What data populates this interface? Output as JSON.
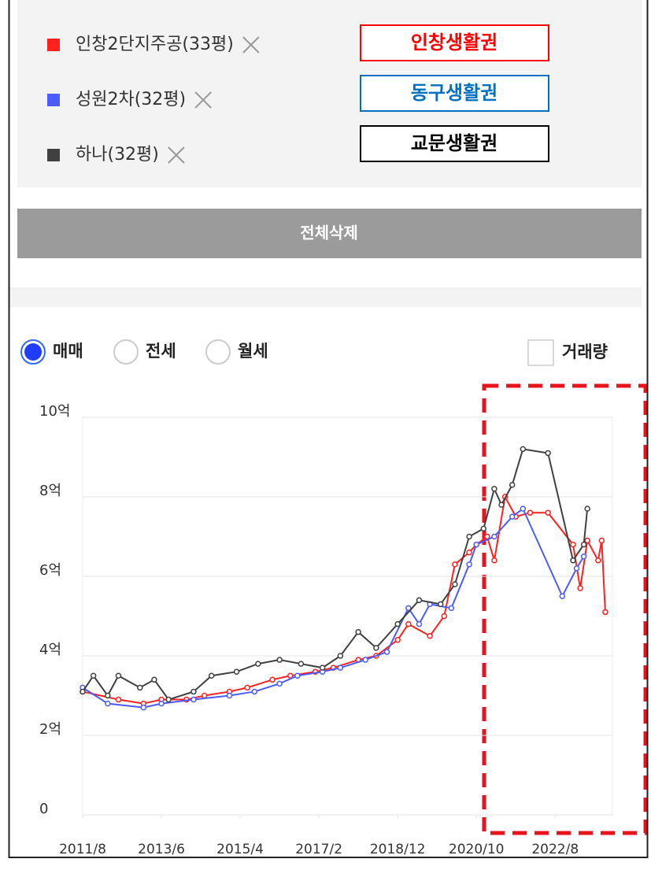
{
  "region_buttons": [
    {
      "label": "인창생활권",
      "color": "#ff0000"
    },
    {
      "label": "동구생활권",
      "color": "#0070c0"
    },
    {
      "label": "교문생활권",
      "color": "#000000"
    }
  ],
  "delete_button": "전체삭제",
  "radio_options": [
    "매매",
    "전세",
    "월세"
  ],
  "checkbox_label": "거래량",
  "chart_data": {
    "type": "line",
    "xlim": [
      "2011/8",
      "2023/12"
    ],
    "xticks": [
      "2011/8",
      "2013/6",
      "2015/4",
      "2017/2",
      "2018/12",
      "2020/10",
      "2022/8"
    ],
    "ylim": [
      0,
      10
    ],
    "yticks": [
      0,
      {
        "value": 2,
        "label": "2억"
      },
      {
        "value": 4,
        "label": "4억"
      },
      {
        "value": 6,
        "label": "6억"
      },
      {
        "value": 8,
        "label": "8억"
      },
      {
        "value": 10,
        "label": "10억"
      }
    ],
    "grid": true,
    "series": [
      {
        "name": "인창2단지주공(33평)",
        "color": "#ff2020",
        "x": [
          "2011/8",
          "2012/6",
          "2013/1",
          "2013/6",
          "2014/1",
          "2014/6",
          "2015/1",
          "2015/6",
          "2016/1",
          "2016/6",
          "2017/1",
          "2017/6",
          "2018/1",
          "2018/6",
          "2018/12",
          "2019/3",
          "2019/9",
          "2020/1",
          "2020/4",
          "2020/8",
          "2020/10",
          "2021/1",
          "2021/3",
          "2021/6",
          "2021/9",
          "2022/1",
          "2022/6",
          "2023/1",
          "2023/3",
          "2023/5",
          "2023/8",
          "2023/9",
          "2023/10"
        ],
        "values": [
          3.1,
          2.9,
          2.8,
          2.9,
          2.9,
          3.0,
          3.1,
          3.2,
          3.4,
          3.5,
          3.6,
          3.7,
          3.9,
          4.0,
          4.4,
          4.8,
          4.5,
          5.0,
          6.3,
          6.6,
          6.8,
          7.0,
          6.4,
          8.0,
          7.5,
          7.6,
          7.6,
          6.8,
          5.7,
          6.9,
          6.4,
          6.9,
          5.1
        ]
      },
      {
        "name": "성원2차(32평)",
        "color": "#4a5cff",
        "x": [
          "2011/8",
          "2012/3",
          "2013/1",
          "2013/6",
          "2014/3",
          "2015/1",
          "2015/8",
          "2016/3",
          "2016/8",
          "2017/3",
          "2017/8",
          "2018/3",
          "2018/9",
          "2019/3",
          "2019/6",
          "2019/9",
          "2020/3",
          "2020/8",
          "2020/10",
          "2021/3",
          "2021/8",
          "2021/11",
          "2022/10",
          "2023/2",
          "2023/4"
        ],
        "values": [
          3.2,
          2.8,
          2.7,
          2.8,
          2.9,
          3.0,
          3.1,
          3.3,
          3.5,
          3.6,
          3.7,
          3.9,
          4.1,
          5.2,
          4.8,
          5.3,
          5.2,
          6.3,
          6.8,
          7.0,
          7.5,
          7.7,
          5.5,
          6.2,
          6.5
        ]
      },
      {
        "name": "하나(32평)",
        "color": "#404040",
        "x": [
          "2011/8",
          "2011/11",
          "2012/3",
          "2012/6",
          "2012/12",
          "2013/4",
          "2013/8",
          "2014/3",
          "2014/8",
          "2015/3",
          "2015/9",
          "2016/3",
          "2016/9",
          "2017/3",
          "2017/8",
          "2018/1",
          "2018/6",
          "2018/12",
          "2019/6",
          "2019/12",
          "2020/4",
          "2020/8",
          "2020/12",
          "2021/3",
          "2021/5",
          "2021/8",
          "2021/11",
          "2022/6",
          "2023/1",
          "2023/4",
          "2023/5"
        ],
        "values": [
          3.1,
          3.5,
          3.0,
          3.5,
          3.2,
          3.4,
          2.9,
          3.1,
          3.5,
          3.6,
          3.8,
          3.9,
          3.8,
          3.7,
          4.0,
          4.6,
          4.2,
          4.8,
          5.4,
          5.3,
          5.8,
          7.0,
          7.2,
          8.2,
          7.8,
          8.3,
          9.2,
          9.1,
          6.4,
          6.8,
          7.7
        ]
      }
    ]
  }
}
